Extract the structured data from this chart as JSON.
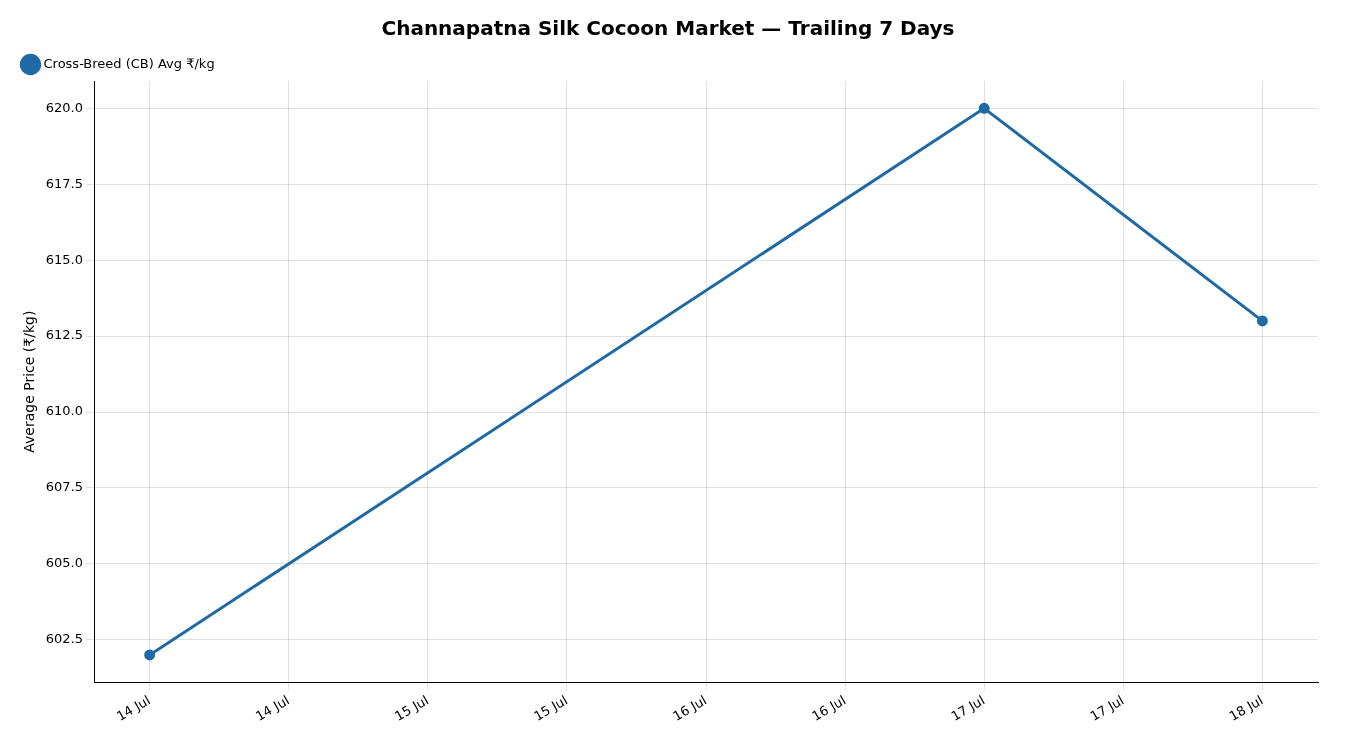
{
  "chart_data": {
    "type": "line",
    "title": "Channapatna Silk Cocoon Market — Trailing 7 Days",
    "ylabel": "Average Price (₹/kg)",
    "x": [
      "--07-14",
      "--07-17",
      "--07-18"
    ],
    "series": [
      {
        "name": "Cross-Breed (CB) Avg ₹/kg",
        "color": "#1f6aa5",
        "values": [
          602,
          620,
          613
        ]
      }
    ],
    "xlim": [
      "--07-13T19:12",
      "--07-18T04:48"
    ],
    "xticks": [
      {
        "value": "--07-14",
        "label": "14 Jul"
      },
      {
        "value": "--07-14T12:00",
        "label": "14 Jul"
      },
      {
        "value": "--07-15",
        "label": "15 Jul"
      },
      {
        "value": "--07-15T12:00",
        "label": "15 Jul"
      },
      {
        "value": "--07-16",
        "label": "16 Jul"
      },
      {
        "value": "--07-16T12:00",
        "label": "16 Jul"
      },
      {
        "value": "--07-17",
        "label": "17 Jul"
      },
      {
        "value": "--07-17T12:00",
        "label": "17 Jul"
      },
      {
        "value": "--07-18",
        "label": "18 Jul"
      }
    ],
    "ylim": [
      601.1,
      620.9
    ],
    "yticks": [
      {
        "value": 602.5,
        "label": "602.5"
      },
      {
        "value": 605,
        "label": "605.0"
      },
      {
        "value": 607.5,
        "label": "607.5"
      },
      {
        "value": 610,
        "label": "610.0"
      },
      {
        "value": 612.5,
        "label": "612.5"
      },
      {
        "value": 615,
        "label": "615.0"
      },
      {
        "value": 617.5,
        "label": "617.5"
      },
      {
        "value": 620,
        "label": "620.0"
      }
    ],
    "grid": true,
    "legend": "top left",
    "marker": "circle",
    "line_style": "solid"
  }
}
